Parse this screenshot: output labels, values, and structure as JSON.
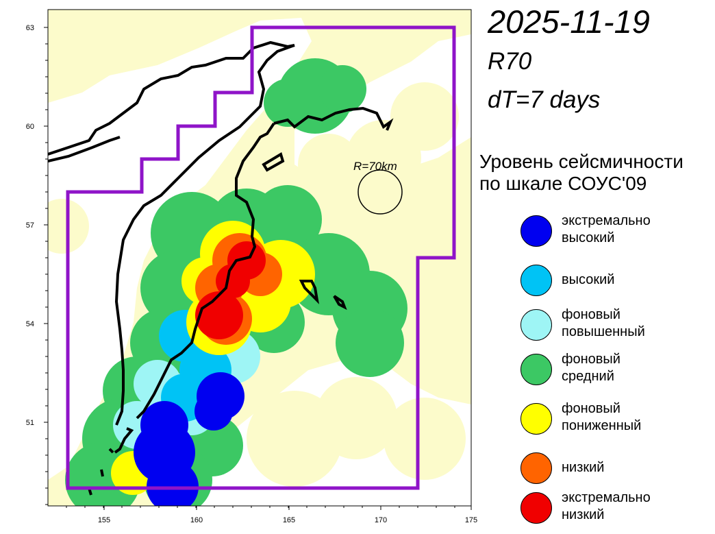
{
  "header": {
    "date": "2025-11-19",
    "radius_param": "R70",
    "time_window": "dT=7 days"
  },
  "map": {
    "x_ticks": [
      "155",
      "160",
      "165",
      "170",
      "175"
    ],
    "y_ticks": [
      "63",
      "60",
      "57",
      "54",
      "51"
    ],
    "radius_circle_label": "R=70km",
    "colors": {
      "land": "#fcfbcb",
      "sea": "#ffffff",
      "zone_border": "#8f14c8"
    }
  },
  "legend": {
    "title_line1": "Уровень сейсмичности",
    "title_line2": "по шкале СОУС'09",
    "items": [
      {
        "label": "экстремально\nвысокий",
        "color": "#0000f0"
      },
      {
        "label": "высокий",
        "color": "#00c3f5"
      },
      {
        "label": "фоновый\nповышенный",
        "color": "#9ef5f5"
      },
      {
        "label": "фоновый\nсредний",
        "color": "#3cc864"
      },
      {
        "label": "фоновый\nпониженный",
        "color": "#ffff00"
      },
      {
        "label": "низкий",
        "color": "#ff6400"
      },
      {
        "label": "экстремально\nнизкий",
        "color": "#f00000"
      }
    ]
  }
}
